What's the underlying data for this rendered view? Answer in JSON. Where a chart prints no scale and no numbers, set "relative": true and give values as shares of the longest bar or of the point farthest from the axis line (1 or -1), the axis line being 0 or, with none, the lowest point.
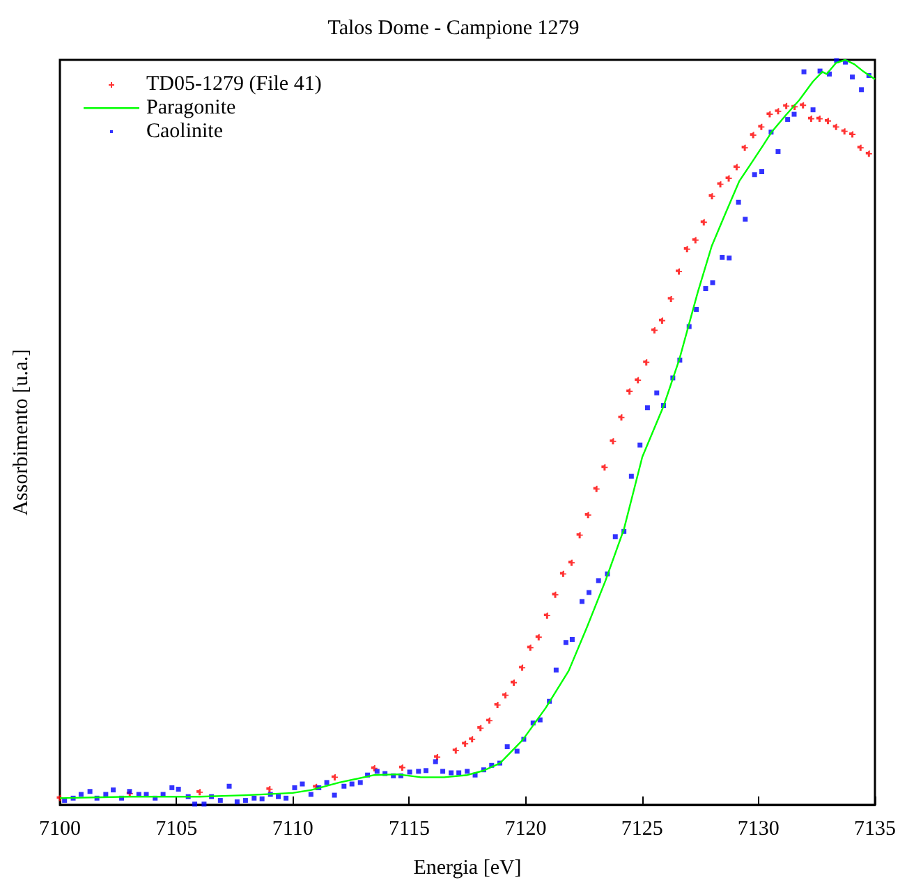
{
  "chart_data": {
    "type": "scatter",
    "title": "Talos Dome - Campione 1279",
    "xlabel": "Energia [eV]",
    "ylabel": "Assorbimento [u.a.]",
    "relative": true,
    "xlim": [
      7100,
      7135
    ],
    "xticks": [
      7100,
      7105,
      7110,
      7115,
      7120,
      7125,
      7130,
      7135
    ],
    "legend": "top left",
    "grid": false,
    "series": [
      {
        "name": "TD05-1279 (File 41)",
        "marker": "cross",
        "color": "#ff0000",
        "x": [
          7100,
          7103,
          7106,
          7109,
          7111,
          7111.8,
          7113.5,
          7114.7,
          7116.2,
          7117,
          7117.4,
          7117.7,
          7118.06,
          7118.44,
          7118.79,
          7119.13,
          7119.49,
          7119.85,
          7120.2,
          7120.56,
          7120.92,
          7121.27,
          7121.61,
          7121.97,
          7122.32,
          7122.68,
          7123.04,
          7123.39,
          7123.75,
          7124.11,
          7124.46,
          7124.82,
          7125.18,
          7125.53,
          7125.86,
          7126.24,
          7126.58,
          7126.93,
          7127.29,
          7127.65,
          7128,
          7128.36,
          7128.72,
          7129.06,
          7129.41,
          7129.77,
          7130.12,
          7130.48,
          7130.84,
          7131.19,
          7131.55,
          7131.91,
          7132.26,
          7132.62,
          7132.98,
          7133.33,
          7133.69,
          7134.03,
          7134.38,
          7134.74
        ],
        "values": [
          0.009,
          0.015,
          0.017,
          0.021,
          0.024,
          0.037,
          0.049,
          0.05,
          0.064,
          0.073,
          0.082,
          0.088,
          0.103,
          0.113,
          0.134,
          0.147,
          0.164,
          0.184,
          0.211,
          0.225,
          0.254,
          0.282,
          0.31,
          0.325,
          0.362,
          0.389,
          0.424,
          0.453,
          0.488,
          0.52,
          0.555,
          0.57,
          0.594,
          0.637,
          0.65,
          0.679,
          0.716,
          0.746,
          0.758,
          0.782,
          0.817,
          0.833,
          0.841,
          0.856,
          0.882,
          0.899,
          0.91,
          0.927,
          0.931,
          0.938,
          0.937,
          0.939,
          0.921,
          0.921,
          0.918,
          0.91,
          0.904,
          0.9,
          0.882,
          0.874
        ]
      },
      {
        "name": "Paragonite",
        "type": "line",
        "marker": "none",
        "color": "#00ff00",
        "x": [
          7100,
          7103,
          7106,
          7108,
          7110,
          7110.8,
          7112,
          7113.5,
          7114.5,
          7115.5,
          7116.5,
          7117.5,
          7118.2,
          7118.9,
          7119.87,
          7120.86,
          7121.85,
          7122.64,
          7123.43,
          7124.22,
          7125.01,
          7125.92,
          7126.6,
          7127.39,
          7127.99,
          7128.58,
          7129.17,
          7129.77,
          7130.17,
          7130.56,
          7131.15,
          7131.75,
          7132.34,
          7132.74,
          7132.93,
          7133.33,
          7133.73,
          7134.12,
          7134.52,
          7135
        ],
        "values": [
          0.009,
          0.011,
          0.011,
          0.013,
          0.016,
          0.02,
          0.03,
          0.04,
          0.041,
          0.037,
          0.037,
          0.04,
          0.046,
          0.056,
          0.087,
          0.13,
          0.18,
          0.239,
          0.301,
          0.37,
          0.467,
          0.535,
          0.598,
          0.688,
          0.75,
          0.794,
          0.837,
          0.865,
          0.884,
          0.903,
          0.925,
          0.946,
          0.971,
          0.984,
          0.981,
          0.996,
          1,
          0.994,
          0.984,
          0.974
        ]
      },
      {
        "name": "Caolinite",
        "marker": "square",
        "color": "#0000ff",
        "x": [
          7100.2,
          7100.57,
          7100.91,
          7101.29,
          7101.59,
          7101.97,
          7102.29,
          7102.65,
          7102.99,
          7103.39,
          7103.71,
          7104.09,
          7104.43,
          7104.81,
          7105.09,
          7105.51,
          7105.79,
          7106.19,
          7106.51,
          7106.89,
          7107.27,
          7107.61,
          7107.97,
          7108.34,
          7108.68,
          7109.04,
          7109.38,
          7109.71,
          7110.08,
          7110.41,
          7110.78,
          7111.12,
          7111.46,
          7111.79,
          7112.2,
          7112.54,
          7112.9,
          7113.21,
          7113.62,
          7113.96,
          7114.32,
          7114.64,
          7115.02,
          7115.4,
          7115.72,
          7116.13,
          7116.44,
          7116.8,
          7117.13,
          7117.49,
          7117.83,
          7118.2,
          7118.54,
          7118.89,
          7119.21,
          7119.63,
          7119.92,
          7120.32,
          7120.62,
          7121.02,
          7121.31,
          7121.73,
          7122,
          7122.42,
          7122.72,
          7123.13,
          7123.51,
          7123.85,
          7124.22,
          7124.54,
          7124.91,
          7125.23,
          7125.63,
          7125.92,
          7126.32,
          7126.62,
          7127.02,
          7127.33,
          7127.73,
          7128.03,
          7128.44,
          7128.74,
          7129.14,
          7129.43,
          7129.83,
          7130.14,
          7130.54,
          7130.84,
          7131.25,
          7131.53,
          7131.95,
          7132.34,
          7132.64,
          7133.04,
          7133.35,
          7133.73,
          7134.03,
          7134.42,
          7134.74
        ],
        "values": [
          0.006,
          0.009,
          0.014,
          0.018,
          0.009,
          0.014,
          0.02,
          0.009,
          0.018,
          0.014,
          0.014,
          0.009,
          0.014,
          0.023,
          0.021,
          0.011,
          0.001,
          0.001,
          0.011,
          0.006,
          0.025,
          0.004,
          0.006,
          0.009,
          0.008,
          0.014,
          0.011,
          0.009,
          0.023,
          0.028,
          0.014,
          0.023,
          0.03,
          0.013,
          0.025,
          0.028,
          0.03,
          0.04,
          0.045,
          0.042,
          0.039,
          0.039,
          0.044,
          0.045,
          0.046,
          0.058,
          0.045,
          0.043,
          0.043,
          0.045,
          0.04,
          0.047,
          0.053,
          0.056,
          0.078,
          0.072,
          0.088,
          0.11,
          0.114,
          0.139,
          0.181,
          0.218,
          0.222,
          0.273,
          0.285,
          0.301,
          0.31,
          0.36,
          0.367,
          0.441,
          0.483,
          0.533,
          0.553,
          0.536,
          0.573,
          0.597,
          0.642,
          0.665,
          0.693,
          0.701,
          0.735,
          0.734,
          0.809,
          0.786,
          0.846,
          0.85,
          0.903,
          0.877,
          0.92,
          0.927,
          0.984,
          0.933,
          0.985,
          0.981,
          0.999,
          0.997,
          0.977,
          0.96,
          0.979
        ]
      }
    ]
  }
}
